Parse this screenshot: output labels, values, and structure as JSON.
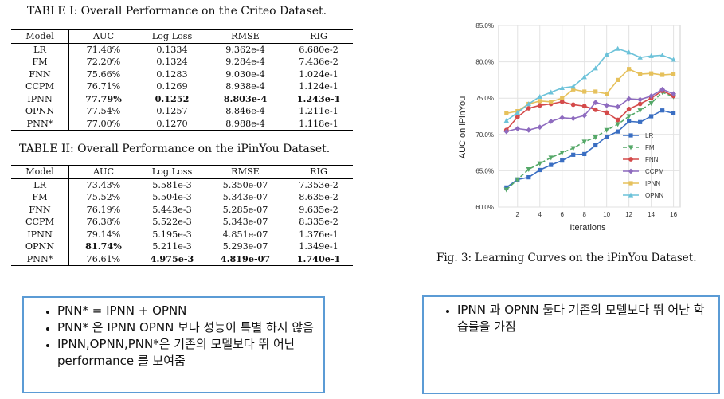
{
  "table1": {
    "title": "TABLE I: Overall Performance on the Criteo Dataset.",
    "headers": [
      "Model",
      "AUC",
      "Log Loss",
      "RMSE",
      "RIG"
    ],
    "rows": [
      {
        "model": "LR",
        "auc": "71.48%",
        "logloss": "0.1334",
        "rmse": "9.362e-4",
        "rig": "6.680e-2"
      },
      {
        "model": "FM",
        "auc": "72.20%",
        "logloss": "0.1324",
        "rmse": "9.284e-4",
        "rig": "7.436e-2"
      },
      {
        "model": "FNN",
        "auc": "75.66%",
        "logloss": "0.1283",
        "rmse": "9.030e-4",
        "rig": "1.024e-1"
      },
      {
        "model": "CCPM",
        "auc": "76.71%",
        "logloss": "0.1269",
        "rmse": "8.938e-4",
        "rig": "1.124e-1"
      },
      {
        "model": "IPNN",
        "auc": "77.79%",
        "logloss": "0.1252",
        "rmse": "8.803e-4",
        "rig": "1.243e-1"
      },
      {
        "model": "OPNN",
        "auc": "77.54%",
        "logloss": "0.1257",
        "rmse": "8.846e-4",
        "rig": "1.211e-1"
      },
      {
        "model": "PNN*",
        "auc": "77.00%",
        "logloss": "0.1270",
        "rmse": "8.988e-4",
        "rig": "1.118e-1"
      }
    ]
  },
  "table2": {
    "title": "TABLE II: Overall Performance on the iPinYou Dataset.",
    "headers": [
      "Model",
      "AUC",
      "Log Loss",
      "RMSE",
      "RIG"
    ],
    "rows": [
      {
        "model": "LR",
        "auc": "73.43%",
        "logloss": "5.581e-3",
        "rmse": "5.350e-07",
        "rig": "7.353e-2"
      },
      {
        "model": "FM",
        "auc": "75.52%",
        "logloss": "5.504e-3",
        "rmse": "5.343e-07",
        "rig": "8.635e-2"
      },
      {
        "model": "FNN",
        "auc": "76.19%",
        "logloss": "5.443e-3",
        "rmse": "5.285e-07",
        "rig": "9.635e-2"
      },
      {
        "model": "CCPM",
        "auc": "76.38%",
        "logloss": "5.522e-3",
        "rmse": "5.343e-07",
        "rig": "8.335e-2"
      },
      {
        "model": "IPNN",
        "auc": "79.14%",
        "logloss": "5.195e-3",
        "rmse": "4.851e-07",
        "rig": "1.376e-1"
      },
      {
        "model": "OPNN",
        "auc": "81.74%",
        "logloss": "5.211e-3",
        "rmse": "5.293e-07",
        "rig": "1.349e-1"
      },
      {
        "model": "PNN*",
        "auc": "76.61%",
        "logloss": "4.975e-3",
        "rmse": "4.819e-07",
        "rig": "1.740e-1"
      }
    ]
  },
  "figure": {
    "caption": "Fig. 3: Learning Curves on the iPinYou Dataset."
  },
  "chart_data": {
    "type": "line",
    "title": "",
    "xlabel": "Iterations",
    "ylabel": "AUC on iPinYou",
    "xlim": [
      0.3,
      16.6
    ],
    "ylim": [
      60.0,
      85.0
    ],
    "x_ticks": [
      2,
      4,
      6,
      8,
      10,
      12,
      14,
      16
    ],
    "y_ticks": [
      "60.0%",
      "65.0%",
      "70.0%",
      "75.0%",
      "80.0%",
      "85.0%"
    ],
    "y_tick_values": [
      60,
      65,
      70,
      75,
      80,
      85
    ],
    "grid": true,
    "legend_position": "bottom-right",
    "x": [
      1,
      2,
      3,
      4,
      5,
      6,
      7,
      8,
      9,
      10,
      11,
      12,
      13,
      14,
      15,
      16
    ],
    "series": [
      {
        "name": "LR",
        "color": "#3a6ec2",
        "dash": "",
        "marker": "square",
        "values": [
          62.7,
          63.8,
          64.1,
          65.1,
          65.8,
          66.4,
          67.2,
          67.3,
          68.5,
          69.7,
          70.4,
          71.8,
          71.7,
          72.5,
          73.3,
          72.9
        ]
      },
      {
        "name": "FM",
        "color": "#55a868",
        "dash": "5,3",
        "marker": "triangle-down",
        "values": [
          62.4,
          63.8,
          65.2,
          66.0,
          66.8,
          67.5,
          68.1,
          69.0,
          69.6,
          70.6,
          71.4,
          72.5,
          73.3,
          74.3,
          75.8,
          75.2
        ]
      },
      {
        "name": "FNN",
        "color": "#d44a4a",
        "dash": "",
        "marker": "circle",
        "values": [
          70.6,
          72.4,
          73.6,
          74.0,
          74.2,
          74.5,
          74.1,
          73.9,
          73.4,
          73.0,
          72.0,
          73.5,
          74.2,
          75.0,
          76.0,
          75.3
        ]
      },
      {
        "name": "CCPM",
        "color": "#8e6bbf",
        "dash": "",
        "marker": "diamond",
        "values": [
          70.4,
          70.8,
          70.6,
          71.0,
          71.8,
          72.3,
          72.2,
          72.6,
          74.4,
          74.0,
          73.8,
          74.9,
          74.8,
          75.3,
          76.2,
          75.6
        ]
      },
      {
        "name": "IPNN",
        "color": "#e6c15c",
        "dash": "",
        "marker": "square",
        "values": [
          72.9,
          73.2,
          74.2,
          74.6,
          74.5,
          75.0,
          76.2,
          75.9,
          75.9,
          75.6,
          77.5,
          79.0,
          78.3,
          78.4,
          78.2,
          78.3
        ]
      },
      {
        "name": "OPNN",
        "color": "#6cc2d9",
        "dash": "",
        "marker": "triangle-up",
        "values": [
          71.9,
          73.0,
          74.2,
          75.2,
          75.8,
          76.4,
          76.6,
          77.9,
          79.1,
          81.0,
          81.8,
          81.3,
          80.6,
          80.8,
          80.9,
          80.3
        ]
      }
    ]
  },
  "notes": {
    "left": [
      "PNN* = IPNN + OPNN",
      "PNN* 은 IPNN OPNN 보다 성능이 특별 하지 않음",
      "IPNN,OPNN,PNN*은 기존의 모델보다 뛰 어난 performance 를 보여줌"
    ],
    "right": [
      "IPNN 과 OPNN 둘다 기존의 모델보다 뛰 어난 학습률을 가짐"
    ]
  }
}
